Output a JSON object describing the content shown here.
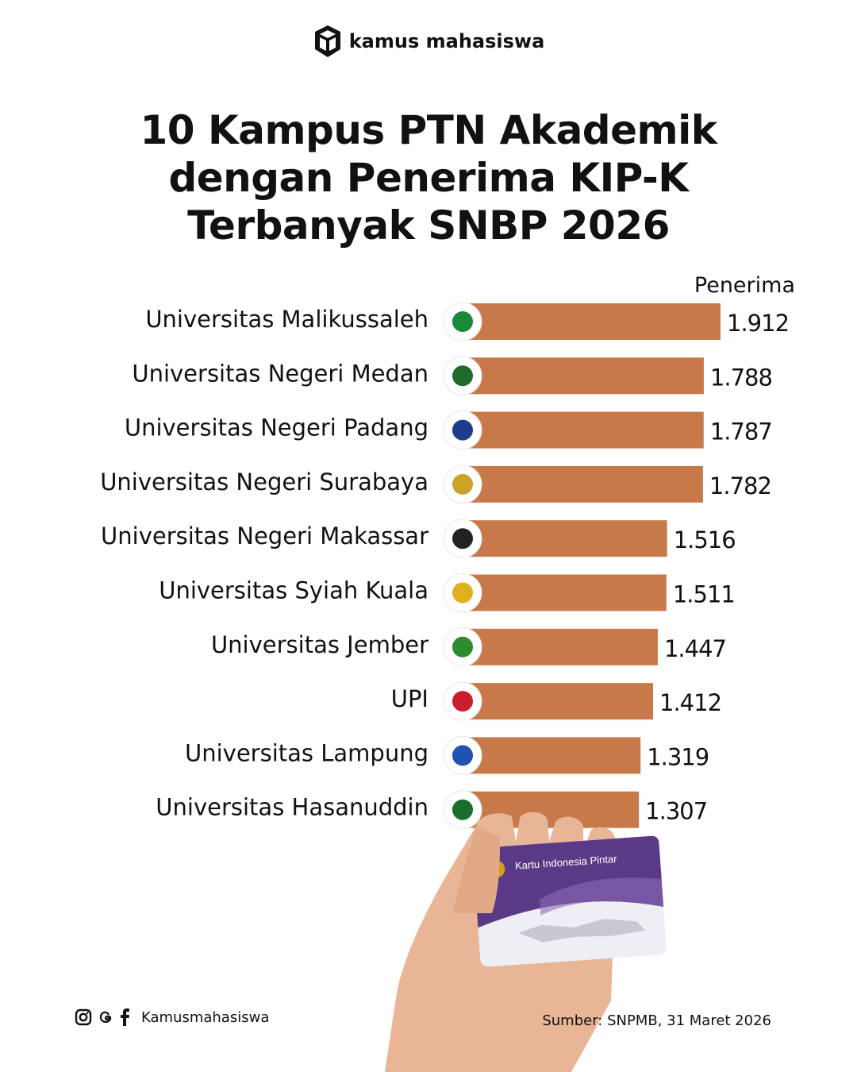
{
  "brand": {
    "name": "kamus mahasiswa",
    "icon": "graduation-cube-icon"
  },
  "title_lines": [
    "10 Kampus PTN Akademik",
    "dengan Penerima KIP-K",
    "Terbanyak SNBP 2026"
  ],
  "chart_data": {
    "type": "bar",
    "orientation": "horizontal",
    "value_header": "Penerima",
    "categories": [
      "Universitas Malikussaleh",
      "Universitas Negeri Medan",
      "Universitas Negeri Padang",
      "Universitas Negeri Surabaya",
      "Universitas Negeri Makassar",
      "Universitas Syiah Kuala",
      "Universitas Jember",
      "UPI",
      "Universitas Lampung",
      "Universitas Hasanuddin"
    ],
    "values": [
      1912,
      1788,
      1787,
      1782,
      1516,
      1511,
      1447,
      1412,
      1319,
      1307
    ],
    "value_labels": [
      "1.912",
      "1.788",
      "1.787",
      "1.782",
      "1.516",
      "1.511",
      "1.447",
      "1.412",
      "1.319",
      "1.307"
    ],
    "bar_color": "#C8794A",
    "logo_colors": [
      "#1a8a3a",
      "#1f6b2a",
      "#1d3c8f",
      "#c9a227",
      "#222222",
      "#e0b020",
      "#2e8b2e",
      "#c8202a",
      "#2052b0",
      "#1a6e2a"
    ],
    "grid": false,
    "legend": "none"
  },
  "card": {
    "label": "Kartu Indonesia Pintar"
  },
  "footer": {
    "social_icons": [
      "instagram-icon",
      "threads-icon",
      "facebook-icon"
    ],
    "handle": "Kamusmahasiswa",
    "source": "Sumber: SNPMB, 31 Maret 2026"
  }
}
